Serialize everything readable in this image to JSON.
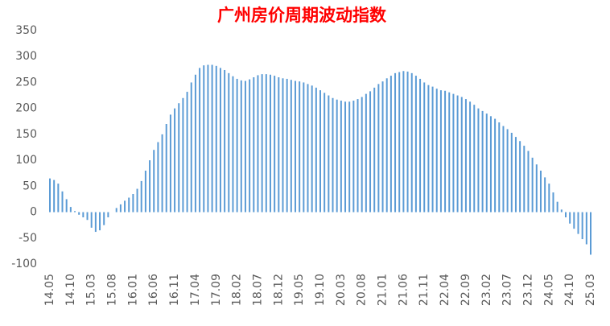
{
  "chart_data": {
    "type": "bar",
    "title": "广州房价周期波动指数",
    "color": "#5b9bd5",
    "ylim": [
      -100,
      350
    ],
    "yticks": [
      -100,
      -50,
      0,
      50,
      100,
      150,
      200,
      250,
      300,
      350
    ],
    "grid": false,
    "categories": [
      "14.05",
      null,
      null,
      null,
      null,
      "14.10",
      null,
      null,
      null,
      null,
      "15.03",
      null,
      null,
      null,
      null,
      "15.08",
      null,
      null,
      null,
      null,
      "16.01",
      null,
      null,
      null,
      null,
      "16.06",
      null,
      null,
      null,
      null,
      "16.11",
      null,
      null,
      null,
      null,
      "17.04",
      null,
      null,
      null,
      null,
      "17.09",
      null,
      null,
      null,
      null,
      "18.02",
      null,
      null,
      null,
      null,
      "18.07",
      null,
      null,
      null,
      null,
      "18.12",
      null,
      null,
      null,
      null,
      "19.05",
      null,
      null,
      null,
      null,
      "19.10",
      null,
      null,
      null,
      null,
      "20.03",
      null,
      null,
      null,
      null,
      "20.08",
      null,
      null,
      null,
      null,
      "21.01",
      null,
      null,
      null,
      null,
      "21.06",
      null,
      null,
      null,
      null,
      "21.11",
      null,
      null,
      null,
      null,
      "22.04",
      null,
      null,
      null,
      null,
      "22.09",
      null,
      null,
      null,
      null,
      "23.02",
      null,
      null,
      null,
      null,
      "23.07",
      null,
      null,
      null,
      null,
      "23.12",
      null,
      null,
      null,
      null,
      "24.05",
      null,
      null,
      null,
      null,
      "24.10",
      null,
      null,
      null,
      null,
      "25.03"
    ],
    "values": [
      65,
      62,
      55,
      40,
      25,
      10,
      2,
      -5,
      -10,
      -15,
      -30,
      -38,
      -35,
      -25,
      -10,
      0,
      8,
      15,
      22,
      28,
      35,
      45,
      60,
      80,
      100,
      120,
      135,
      150,
      170,
      188,
      200,
      210,
      220,
      232,
      250,
      265,
      278,
      283,
      284,
      284,
      282,
      278,
      274,
      268,
      262,
      257,
      254,
      253,
      256,
      260,
      264,
      266,
      266,
      265,
      263,
      260,
      258,
      257,
      255,
      253,
      252,
      250,
      247,
      244,
      240,
      235,
      230,
      225,
      220,
      217,
      215,
      213,
      213,
      215,
      218,
      222,
      228,
      233,
      240,
      247,
      252,
      258,
      263,
      268,
      270,
      272,
      271,
      268,
      263,
      257,
      250,
      245,
      242,
      238,
      235,
      234,
      231,
      228,
      225,
      222,
      218,
      213,
      207,
      200,
      195,
      190,
      185,
      180,
      173,
      166,
      160,
      153,
      145,
      137,
      128,
      118,
      105,
      92,
      80,
      67,
      55,
      38,
      20,
      5,
      -10,
      -22,
      -32,
      -42,
      -52,
      -62,
      -82
    ]
  }
}
